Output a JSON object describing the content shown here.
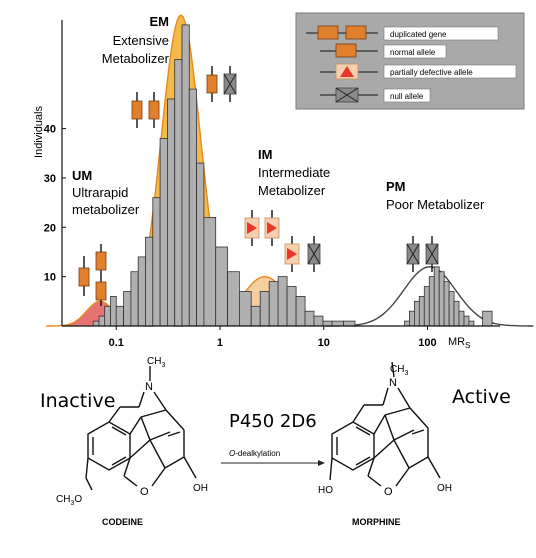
{
  "chart_data": {
    "type": "bar",
    "ylabel": "Individuals",
    "xlabel": "MR",
    "xlabel_sub": "S",
    "x_scale": "log",
    "xlim": [
      0.03,
      500
    ],
    "ylim": [
      0,
      62
    ],
    "y_ticks": [
      "10",
      "20",
      "30",
      "40"
    ],
    "x_ticks": [
      "0.1",
      "1",
      "10",
      "100"
    ],
    "groups": [
      {
        "x_low": 0.06,
        "x_high": 0.1,
        "bars": [
          1,
          2,
          4,
          6
        ]
      },
      {
        "x_low": 0.1,
        "x_high": 0.7,
        "bars": [
          4,
          7,
          11,
          14,
          18,
          26,
          38,
          46,
          54,
          61,
          48,
          33
        ]
      },
      {
        "x_low": 0.7,
        "x_high": 2.0,
        "bars": [
          22,
          16,
          11,
          7
        ]
      },
      {
        "x_low": 2.0,
        "x_high": 12,
        "bars": [
          4,
          7,
          9,
          10,
          8,
          6,
          3,
          2,
          1
        ]
      },
      {
        "x_low": 12,
        "x_high": 20,
        "bars": [
          1,
          1
        ]
      },
      {
        "x_low": 60,
        "x_high": 280,
        "bars": [
          1,
          3,
          5,
          6,
          8,
          10,
          12,
          11,
          9,
          7,
          5,
          3,
          2,
          1
        ]
      },
      {
        "x_low": 340,
        "x_high": 420,
        "bars": [
          3
        ]
      }
    ],
    "curves": [
      {
        "name": "UM",
        "color": "#e05a5a",
        "peak_x": 0.07,
        "peak_y": 5,
        "sigma": 0.13
      },
      {
        "name": "EM",
        "color": "#f2ad2b",
        "peak_x": 0.42,
        "peak_y": 63,
        "sigma": 0.19
      },
      {
        "name": "IM",
        "color": "#f3c58e",
        "peak_x": 2.7,
        "peak_y": 10,
        "sigma": 0.22
      },
      {
        "name": "PM",
        "color": "#9b9b9b",
        "peak_x": 105,
        "peak_y": 12,
        "sigma": 0.25
      }
    ],
    "phenotypes": [
      {
        "abbr": "UM",
        "line1": "Ultrarapid",
        "line2": "metabolizer"
      },
      {
        "abbr": "EM",
        "line1": "Extensive",
        "line2": "Metabolizer"
      },
      {
        "abbr": "IM",
        "line1": "Intermediate",
        "line2": "Metabolizer"
      },
      {
        "abbr": "PM",
        "line1": "Poor Metabolizer",
        "line2": ""
      }
    ]
  },
  "legend": {
    "items": [
      {
        "icon": "duplicated-gene-icon",
        "label": "duplicated gene"
      },
      {
        "icon": "normal-allele-icon",
        "label": "normal allele"
      },
      {
        "icon": "partially-defective-allele-icon",
        "label": "partially defective allele"
      },
      {
        "icon": "null-allele-icon",
        "label": "null allele"
      }
    ]
  },
  "colors": {
    "gene_orange": "#e07f2c",
    "gene_orange_light": "#f4d0b0",
    "defect_red": "#e8362a",
    "null_gray": "#8a8a8a",
    "bar_gray": "#b0b0b0",
    "legend_bg": "#a9a9a9"
  },
  "reaction": {
    "left_state": "Inactive",
    "right_state": "Active",
    "enzyme": "P450 2D6",
    "arrow_label_italic": "O",
    "arrow_label_rest": "-dealkylation",
    "reactant_name": "CODEINE",
    "product_name": "MORPHINE",
    "n_methyl": "CH",
    "n_methyl_sub": "3",
    "n_atom": "N",
    "oxygen_bridge": "O",
    "codeine_methoxy": "CH",
    "codeine_methoxy_sub": "3",
    "codeine_methoxy_o": "O",
    "hydroxyl": "OH",
    "phenol": "HO"
  }
}
